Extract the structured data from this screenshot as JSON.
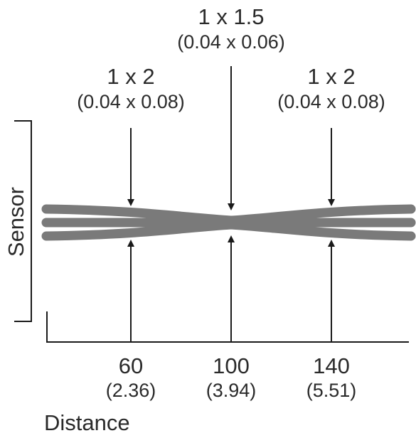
{
  "axis": {
    "y_label": "Sensor",
    "x_label": "Distance"
  },
  "spots": [
    {
      "size": "1 x 2",
      "size_in": "(0.04 x 0.08)"
    },
    {
      "size": "1 x 1.5",
      "size_in": "(0.04 x 0.06)"
    },
    {
      "size": "1 x 2",
      "size_in": "(0.04 x 0.08)"
    }
  ],
  "distances": [
    {
      "value": "60",
      "value_in": "(2.36)"
    },
    {
      "value": "100",
      "value_in": "(3.94)"
    },
    {
      "value": "140",
      "value_in": "(5.51)"
    }
  ],
  "colors": {
    "beam": "#7a7a7a",
    "line": "#1a1a1a",
    "text": "#2a2a2a"
  }
}
